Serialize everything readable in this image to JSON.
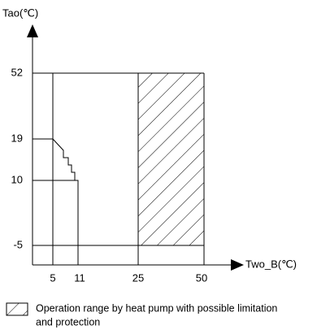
{
  "axes": {
    "y_label": "Tao(℃)",
    "x_label": "Two_B(℃)"
  },
  "y_ticks": [
    "52",
    "19",
    "10",
    "-5"
  ],
  "x_ticks": [
    "5",
    "11",
    "25",
    "50"
  ],
  "legend": {
    "lines": [
      "Operation range by heat pump with possible limitation",
      "and protection"
    ]
  }
}
